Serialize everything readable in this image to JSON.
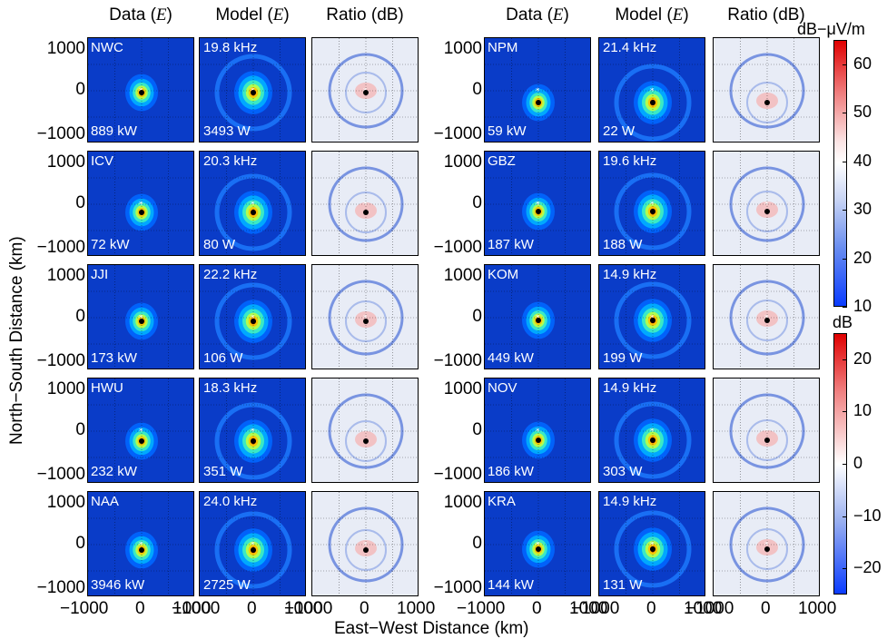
{
  "chart_data": {
    "type": "heatmap",
    "column_headers": [
      "Data (E)",
      "Model (E)",
      "Ratio (dB)",
      "Data (E)",
      "Model (E)",
      "Ratio (dB)"
    ],
    "xlabel": "East−West Distance (km)",
    "ylabel": "North−South Distance (km)",
    "xticks": [
      "−1000",
      "0",
      "1000"
    ],
    "yticks": [
      "1000",
      "0",
      "−1000"
    ],
    "xlim": [
      -1000,
      1000
    ],
    "ylim": [
      -1000,
      1000
    ],
    "colorbar_field": {
      "label": "dB−μV/m",
      "ticks": [
        "60",
        "50",
        "40",
        "30",
        "20",
        "10"
      ],
      "range": [
        10,
        65
      ]
    },
    "colorbar_ratio": {
      "label": "dB",
      "ticks": [
        "20",
        "10",
        "0",
        "−10",
        "−20"
      ],
      "range": [
        -25,
        25
      ]
    },
    "grid": true,
    "transmitters": [
      {
        "name": "NWC",
        "frequency": "19.8 kHz",
        "data_power": "889 kW",
        "model_power": "3493 W"
      },
      {
        "name": "ICV",
        "frequency": "20.3 kHz",
        "data_power": "72 kW",
        "model_power": "80 W"
      },
      {
        "name": "JJI",
        "frequency": "22.2 kHz",
        "data_power": "173 kW",
        "model_power": "106 W"
      },
      {
        "name": "HWU",
        "frequency": "18.3 kHz",
        "data_power": "232 kW",
        "model_power": "351 W"
      },
      {
        "name": "NAA",
        "frequency": "24.0 kHz",
        "data_power": "3946 kW",
        "model_power": "2725 W"
      },
      {
        "name": "NPM",
        "frequency": "21.4 kHz",
        "data_power": "59 kW",
        "model_power": "22 W"
      },
      {
        "name": "GBZ",
        "frequency": "19.6 kHz",
        "data_power": "187 kW",
        "model_power": "188 W"
      },
      {
        "name": "KOM",
        "frequency": "14.9 kHz",
        "data_power": "449 kW",
        "model_power": "199 W"
      },
      {
        "name": "NOV",
        "frequency": "14.9 kHz",
        "data_power": "186 kW",
        "model_power": "303 W"
      },
      {
        "name": "KRA",
        "frequency": "14.9 kHz",
        "data_power": "144 kW",
        "model_power": "131 W"
      }
    ]
  }
}
